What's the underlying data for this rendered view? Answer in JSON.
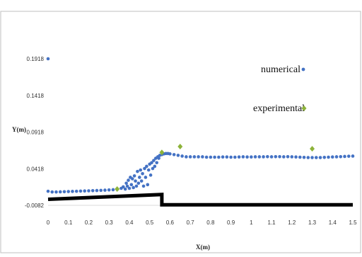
{
  "chart_data": {
    "type": "scatter",
    "xlabel": "X(m)",
    "ylabel": "Y(m)",
    "xlim": [
      0,
      1.5
    ],
    "ylim": [
      -0.0082,
      0.1918
    ],
    "x_ticks": [
      "0",
      "0.1",
      "0.2",
      "0.3",
      "0.4",
      "0.5",
      "0.6",
      "0.7",
      "0.8",
      "0.9",
      "1",
      "1.1",
      "1.2",
      "1.3",
      "1.4",
      "1.5"
    ],
    "y_ticks": [
      "-0.0082",
      "0.0418",
      "0.0918",
      "0.1418",
      "0.1918"
    ],
    "legend_position": "right",
    "series": [
      {
        "name": "numerical",
        "color": "#4472C4",
        "marker": "dot",
        "x": [
          0.0,
          0.0,
          0.02,
          0.04,
          0.06,
          0.08,
          0.1,
          0.12,
          0.14,
          0.16,
          0.18,
          0.2,
          0.22,
          0.24,
          0.26,
          0.28,
          0.3,
          0.32,
          0.34,
          0.36,
          0.37,
          0.38,
          0.385,
          0.39,
          0.395,
          0.4,
          0.405,
          0.41,
          0.415,
          0.42,
          0.425,
          0.43,
          0.435,
          0.44,
          0.445,
          0.45,
          0.455,
          0.46,
          0.465,
          0.47,
          0.475,
          0.48,
          0.485,
          0.49,
          0.495,
          0.5,
          0.505,
          0.51,
          0.515,
          0.52,
          0.525,
          0.53,
          0.535,
          0.54,
          0.545,
          0.55,
          0.56,
          0.57,
          0.58,
          0.59,
          0.6,
          0.62,
          0.64,
          0.66,
          0.68,
          0.7,
          0.72,
          0.74,
          0.76,
          0.78,
          0.8,
          0.82,
          0.84,
          0.86,
          0.88,
          0.9,
          0.92,
          0.94,
          0.96,
          0.98,
          1.0,
          1.02,
          1.04,
          1.06,
          1.08,
          1.1,
          1.12,
          1.14,
          1.16,
          1.18,
          1.2,
          1.22,
          1.24,
          1.26,
          1.28,
          1.3,
          1.32,
          1.34,
          1.36,
          1.38,
          1.4,
          1.42,
          1.44,
          1.46,
          1.48,
          1.5
        ],
        "y": [
          0.1918,
          0.011,
          0.01,
          0.01,
          0.0102,
          0.0104,
          0.0106,
          0.0108,
          0.011,
          0.0112,
          0.0114,
          0.0116,
          0.0118,
          0.012,
          0.0122,
          0.0125,
          0.0128,
          0.0131,
          0.0135,
          0.015,
          0.017,
          0.014,
          0.022,
          0.018,
          0.026,
          0.015,
          0.03,
          0.02,
          0.028,
          0.016,
          0.032,
          0.025,
          0.018,
          0.038,
          0.022,
          0.03,
          0.04,
          0.025,
          0.035,
          0.018,
          0.042,
          0.03,
          0.045,
          0.02,
          0.04,
          0.048,
          0.033,
          0.05,
          0.042,
          0.053,
          0.045,
          0.056,
          0.05,
          0.058,
          0.056,
          0.06,
          0.061,
          0.062,
          0.0625,
          0.0625,
          0.062,
          0.061,
          0.06,
          0.059,
          0.058,
          0.058,
          0.058,
          0.058,
          0.058,
          0.0575,
          0.0575,
          0.0575,
          0.0575,
          0.0578,
          0.0578,
          0.0575,
          0.0575,
          0.0578,
          0.058,
          0.0578,
          0.0578,
          0.058,
          0.058,
          0.058,
          0.0582,
          0.058,
          0.0582,
          0.0582,
          0.058,
          0.0582,
          0.058,
          0.0578,
          0.0575,
          0.0572,
          0.057,
          0.057,
          0.057,
          0.057,
          0.0572,
          0.0575,
          0.0578,
          0.058,
          0.0582,
          0.0585,
          0.0588,
          0.059
        ]
      },
      {
        "name": "experimental",
        "color": "#8DB33A",
        "marker": "diamond",
        "x": [
          0.34,
          0.56,
          0.65,
          1.3
        ],
        "y": [
          0.014,
          0.064,
          0.072,
          0.069
        ]
      }
    ],
    "bed_profile": {
      "color": "#000000",
      "x": [
        0.0,
        0.56,
        0.56,
        1.5
      ],
      "y": [
        0.0,
        0.0065,
        -0.0075,
        -0.0075
      ]
    }
  }
}
